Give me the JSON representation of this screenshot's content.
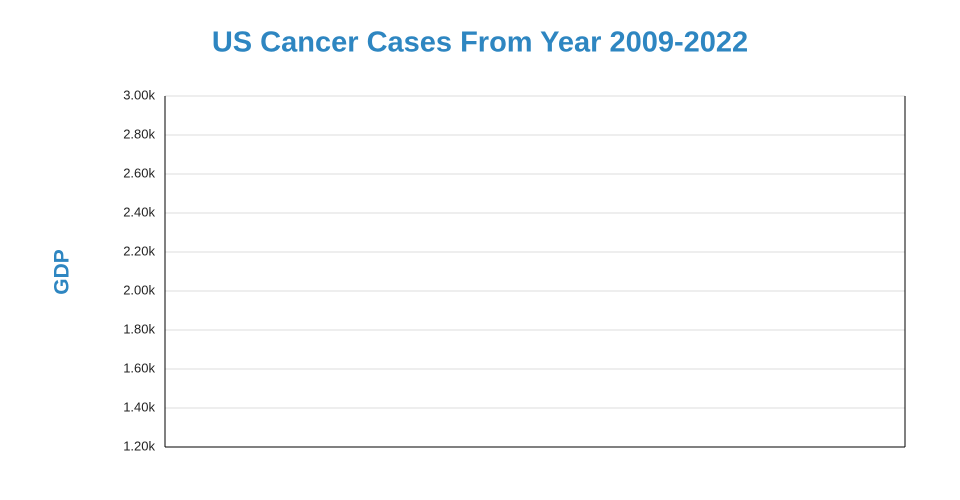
{
  "chart_data": {
    "type": "line",
    "title": "US Cancer Cases From Year 2009-2022",
    "y_label": "GDP",
    "title_color": "#2e86c1",
    "ylim": [
      1200,
      3000
    ],
    "yticks": [
      {
        "value": 1200,
        "label": "1.20k"
      },
      {
        "value": 1400,
        "label": "1.40k"
      },
      {
        "value": 1600,
        "label": "1.60k"
      },
      {
        "value": 1800,
        "label": "1.80k"
      },
      {
        "value": 2000,
        "label": "2.00k"
      },
      {
        "value": 2200,
        "label": "2.20k"
      },
      {
        "value": 2400,
        "label": "2.40k"
      },
      {
        "value": 2600,
        "label": "2.60k"
      },
      {
        "value": 2800,
        "label": "2.80k"
      },
      {
        "value": 3000,
        "label": "3.00k"
      }
    ],
    "grid": true
  }
}
